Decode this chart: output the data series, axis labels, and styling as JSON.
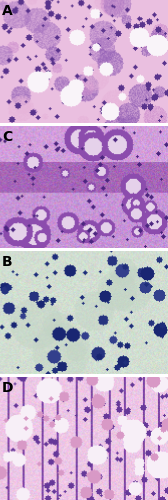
{
  "panel_order": [
    "A",
    "C",
    "B",
    "D"
  ],
  "figsize": [
    1.68,
    5.0
  ],
  "dpi": 100,
  "label_fontsize": 10,
  "label_color": "black",
  "label_weight": "bold",
  "border_color": "black",
  "border_width": 0.5
}
